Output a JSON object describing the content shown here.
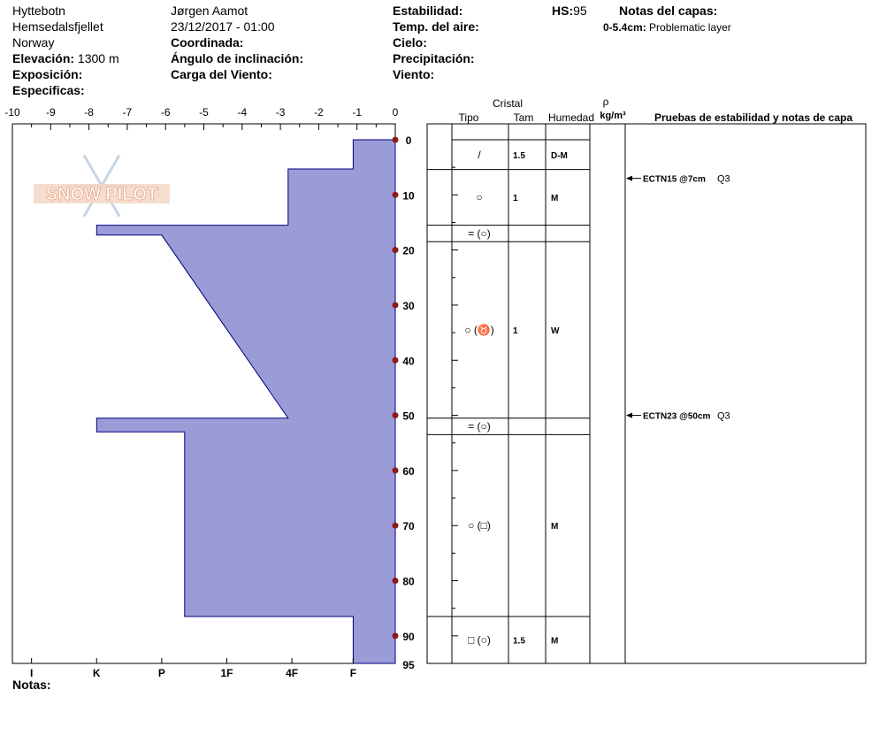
{
  "header": {
    "location": "Hyttebotn",
    "range": "Hemsedalsfjellet",
    "country": "Norway",
    "elevation_label": "Elevación:",
    "elevation_value": "1300 m",
    "aspect_label": "Exposición:",
    "specifics_label": "Especificas:",
    "observer": "Jørgen Aamot",
    "datetime": "23/12/2017 - 01:00",
    "coords_label": "Coordinada:",
    "slope_label": "Ángulo de inclinación:",
    "wind_load_label": "Carga del Viento:",
    "stability_label": "Estabilidad:",
    "air_temp_label": "Temp. del aire:",
    "sky_label": "Cielo:",
    "precip_label": "Precipitación:",
    "wind_label": "Viento:",
    "hs_label": "HS:",
    "hs_value": "95",
    "layer_notes_label": "Notas del capas:",
    "layer_note_range": "0-5.4cm:",
    "layer_note_text": "Problematic layer"
  },
  "logo": {
    "text": "SNOW PILOT"
  },
  "notes_label": "Notas:",
  "columns": {
    "crystal": "Cristal",
    "type": "Tipo",
    "size": "Tam",
    "moisture": "Humedad",
    "rho": "ρ",
    "density_unit": "kg/m³",
    "tests": "Pruebas de estabilidad y notas de capa"
  },
  "layers": [
    {
      "top": 0,
      "bottom": 5.4,
      "type": "/",
      "size": "1.5",
      "moisture": "D-M"
    },
    {
      "top": 5.4,
      "bottom": 15.5,
      "type": "○",
      "size": "1",
      "moisture": "M"
    },
    {
      "top": 15.5,
      "bottom": 18.5,
      "type": "= (○)",
      "size": "",
      "moisture": ""
    },
    {
      "top": 18.5,
      "bottom": 50.5,
      "type": "○ (♉)",
      "size": "1",
      "moisture": "W"
    },
    {
      "top": 50.5,
      "bottom": 53.5,
      "type": "= (○)",
      "size": "",
      "moisture": ""
    },
    {
      "top": 53.5,
      "bottom": 86.5,
      "type": "○ (□)",
      "size": "",
      "moisture": "M"
    },
    {
      "top": 86.5,
      "bottom": 95,
      "type": "□ (○)",
      "size": "1.5",
      "moisture": "M"
    }
  ],
  "tests": [
    {
      "depth": 7,
      "label": "ECTN15 @7cm",
      "quality": "Q3"
    },
    {
      "depth": 50,
      "label": "ECTN23 @50cm",
      "quality": "Q3"
    }
  ],
  "chart_data": {
    "type": "area",
    "description": "Hand hardness profile (snow pit)",
    "x_axis_top": {
      "min": -10,
      "max": 0,
      "ticks": [
        "-10",
        "-9",
        "-8",
        "-7",
        "-6",
        "-5",
        "-4",
        "-3",
        "-2",
        "-1",
        "0"
      ]
    },
    "x_axis_bottom": {
      "ticks": [
        {
          "label": "I",
          "value": -9.5
        },
        {
          "label": "K",
          "value": -7.8
        },
        {
          "label": "P",
          "value": -6.1
        },
        {
          "label": "1F",
          "value": -4.4
        },
        {
          "label": "4F",
          "value": -2.7
        },
        {
          "label": "F",
          "value": -1.1
        }
      ]
    },
    "y_axis": {
      "min": 0,
      "max": 95,
      "ticks": [
        "0",
        "10",
        "20",
        "30",
        "40",
        "50",
        "60",
        "70",
        "80",
        "90"
      ],
      "end_label": "95"
    },
    "profile": [
      [
        -1.1,
        0
      ],
      [
        -1.1,
        5.3
      ],
      [
        -2.8,
        5.3
      ],
      [
        -2.8,
        15.5
      ],
      [
        -7.8,
        15.5
      ],
      [
        -7.8,
        17.3
      ],
      [
        -6.1,
        17.3
      ],
      [
        -2.8,
        50.5
      ],
      [
        -7.8,
        50.5
      ],
      [
        -7.8,
        53
      ],
      [
        -5.5,
        53
      ],
      [
        -5.5,
        86.5
      ],
      [
        -1.1,
        86.5
      ],
      [
        -1.1,
        95
      ]
    ]
  }
}
